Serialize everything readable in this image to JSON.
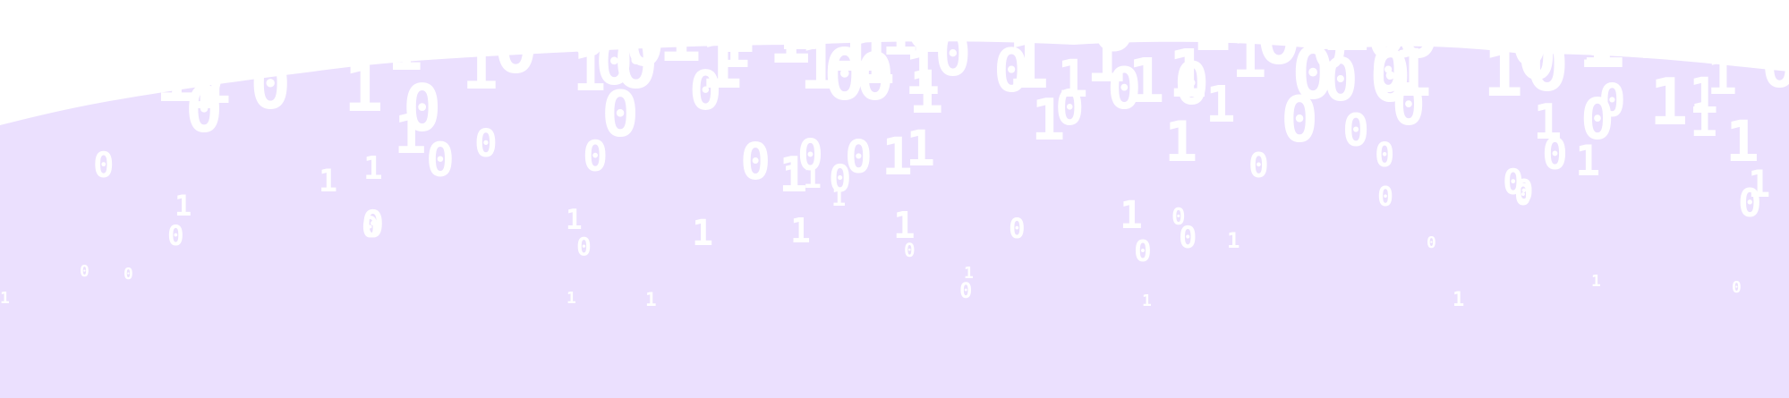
{
  "scene": {
    "background_color": "#ebe0fe",
    "cloud_color": "#ffffff",
    "digit_color": "#ffffff",
    "digits": [
      "0",
      "1"
    ]
  }
}
